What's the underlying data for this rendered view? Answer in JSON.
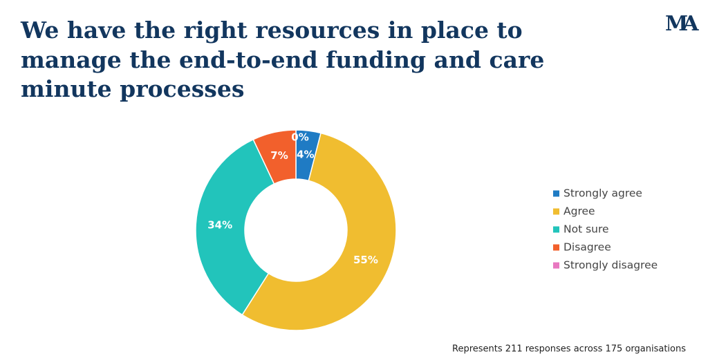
{
  "chart_data": {
    "type": "donut",
    "title": "We have the right resources in place to manage the end-to-end funding and care minute processes",
    "title_lines": [
      "We have the right resources in place to",
      "manage the end-to-end funding and care",
      "minute processes"
    ],
    "logo_text": "MA",
    "categories": [
      "Strongly agree",
      "Agree",
      "Not sure",
      "Disagree",
      "Strongly disagree"
    ],
    "values": [
      4,
      55,
      34,
      7,
      0
    ],
    "value_labels": [
      "4%",
      "55%",
      "34%",
      "7%",
      "0%"
    ],
    "colors": [
      "#1f7bc4",
      "#f0bd30",
      "#22c4bb",
      "#f2602c",
      "#e878c0"
    ],
    "legend": "right",
    "footnote": "Represents 211 responses across 175 organisations"
  }
}
